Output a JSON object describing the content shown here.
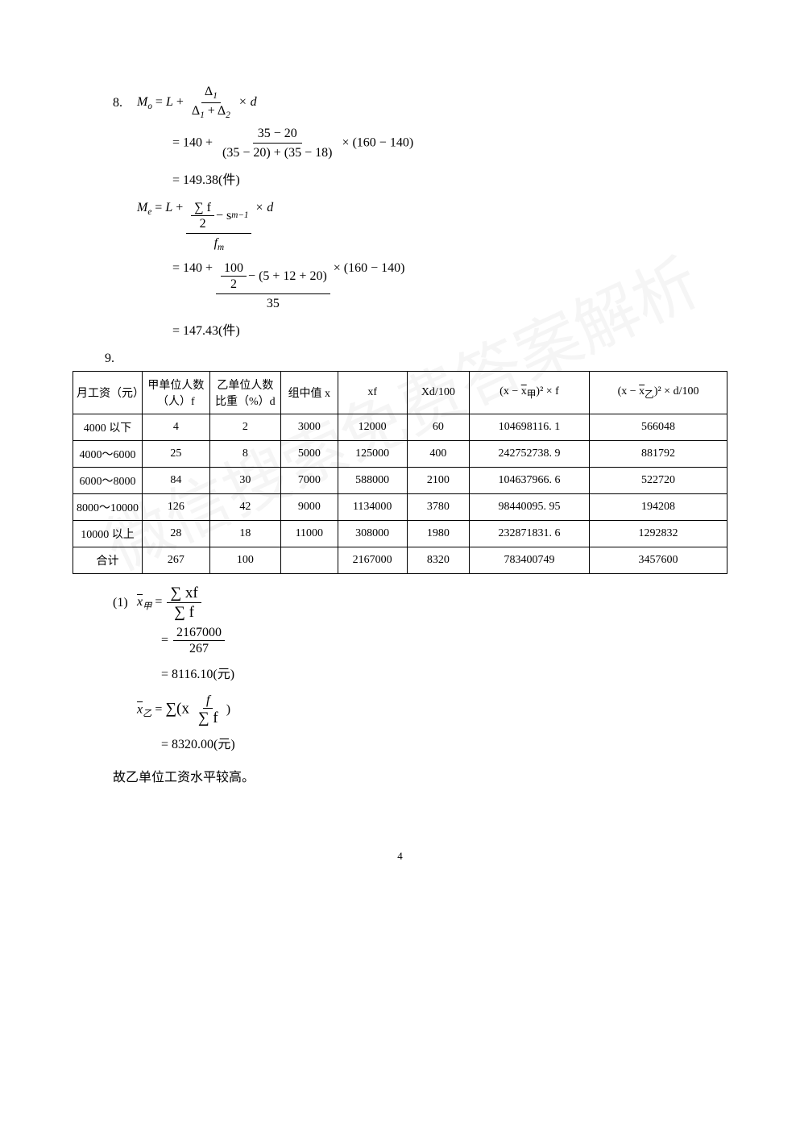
{
  "q8": {
    "label": "8.",
    "mo_line1_lhs": "M",
    "mo_sub": "o",
    "eq": " = ",
    "L": "L",
    "plus": " + ",
    "delta1": "Δ",
    "sub1": "1",
    "delta2_sub": "2",
    "times_d": " × d",
    "line2_prefix": "= 140 + ",
    "line2_num": "35 − 20",
    "line2_den": "(35 − 20) + (35 − 18)",
    "line2_suffix": " × (160 − 140)",
    "line3": "= 149.38(件)",
    "me_lhs": "M",
    "me_sub": "e",
    "me_num_sum": "∑ f",
    "me_num_half": "2",
    "me_minus_s": " − s",
    "me_s_sub": "m−1",
    "me_den_f": "f",
    "me_den_sub": "m",
    "me_line2_prefix": "= 140 + ",
    "me_line2_top_frac_num": "100",
    "me_line2_top_frac_den": "2",
    "me_line2_top_rest": " − (5 + 12 + 20)",
    "me_line2_bot": "35",
    "me_line2_suffix": " × (160 − 140)",
    "me_line3": "= 147.43(件)"
  },
  "q9": {
    "label": "9.",
    "headers": {
      "c0": "月工资（元）",
      "c1": "甲单位人数（人）f",
      "c2": "乙单位人数比重（%）d",
      "c3": "组中值 x",
      "c4": "xf",
      "c5": "Xd/100",
      "c6_pre": "(x − ",
      "c6_x": "x",
      "c6_sub": "甲",
      "c6_post": ")² × f",
      "c7_pre": "(x − ",
      "c7_x": "x",
      "c7_sub": "乙",
      "c7_post": ")² × d/100"
    },
    "rows": [
      {
        "c0": "4000 以下",
        "c1": "4",
        "c2": "2",
        "c3": "3000",
        "c4": "12000",
        "c5": "60",
        "c6": "104698116. 1",
        "c7": "566048"
      },
      {
        "c0": "4000～6000",
        "c1": "25",
        "c2": "8",
        "c3": "5000",
        "c4": "125000",
        "c5": "400",
        "c6": "242752738. 9",
        "c7": "881792"
      },
      {
        "c0": "6000～8000",
        "c1": "84",
        "c2": "30",
        "c3": "7000",
        "c4": "588000",
        "c5": "2100",
        "c6": "104637966. 6",
        "c7": "522720"
      },
      {
        "c0": "8000～10000",
        "c1": "126",
        "c2": "42",
        "c3": "9000",
        "c4": "1134000",
        "c5": "3780",
        "c6": "98440095. 95",
        "c7": "194208"
      },
      {
        "c0": "10000 以上",
        "c1": "28",
        "c2": "18",
        "c3": "11000",
        "c4": "308000",
        "c5": "1980",
        "c6": "232871831. 6",
        "c7": "1292832"
      }
    ],
    "total": {
      "c0": "合计",
      "c1": "267",
      "c2": "100",
      "c3": "",
      "c4": "2167000",
      "c5": "8320",
      "c6": "783400749",
      "c7": "3457600"
    }
  },
  "part1": {
    "label": "(1)",
    "xjia_bar": "x",
    "xjia_sub": "甲",
    "eq": " = ",
    "sum_xf": "∑ xf",
    "sum_f": "∑ f",
    "line2_num": "2167000",
    "line2_den": "267",
    "line3": "= 8116.10(元)",
    "xyi_bar": "x",
    "xyi_sub": "乙",
    "sum_open": "∑(x ",
    "f_over_sumf_f": "f",
    "f_over_sumf_sumf": "∑ f",
    "close": ")",
    "line5": "= 8320.00(元)"
  },
  "conclusion": "故乙单位工资水平较高。",
  "watermark": "微信搜索免费答案解析",
  "page_number": "4"
}
